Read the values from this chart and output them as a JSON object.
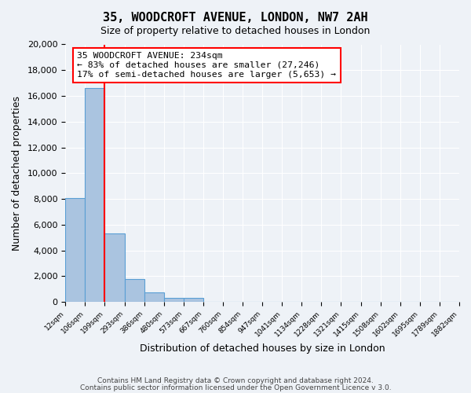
{
  "title": "35, WOODCROFT AVENUE, LONDON, NW7 2AH",
  "subtitle": "Size of property relative to detached houses in London",
  "xlabel": "Distribution of detached houses by size in London",
  "ylabel": "Number of detached properties",
  "bar_values": [
    8050,
    16600,
    5300,
    1800,
    750,
    300,
    300,
    0,
    0,
    0,
    0,
    0,
    0,
    0,
    0,
    0,
    0,
    0,
    0,
    0
  ],
  "bin_labels": [
    "12sqm",
    "106sqm",
    "199sqm",
    "293sqm",
    "386sqm",
    "480sqm",
    "573sqm",
    "667sqm",
    "760sqm",
    "854sqm",
    "947sqm",
    "1041sqm",
    "1134sqm",
    "1228sqm",
    "1321sqm",
    "1415sqm",
    "1508sqm",
    "1602sqm",
    "1695sqm",
    "1789sqm",
    "1882sqm"
  ],
  "bar_color": "#aac4e0",
  "bar_edge_color": "#5a9fd4",
  "red_line_x": 2.0,
  "ylim": [
    0,
    20000
  ],
  "yticks": [
    0,
    2000,
    4000,
    6000,
    8000,
    10000,
    12000,
    14000,
    16000,
    18000,
    20000
  ],
  "annotation_title": "35 WOODCROFT AVENUE: 234sqm",
  "annotation_line1": "← 83% of detached houses are smaller (27,246)",
  "annotation_line2": "17% of semi-detached houses are larger (5,653) →",
  "footer1": "Contains HM Land Registry data © Crown copyright and database right 2024.",
  "footer2": "Contains public sector information licensed under the Open Government Licence v 3.0.",
  "background_color": "#eef2f7",
  "plot_bg_color": "#eef2f7"
}
